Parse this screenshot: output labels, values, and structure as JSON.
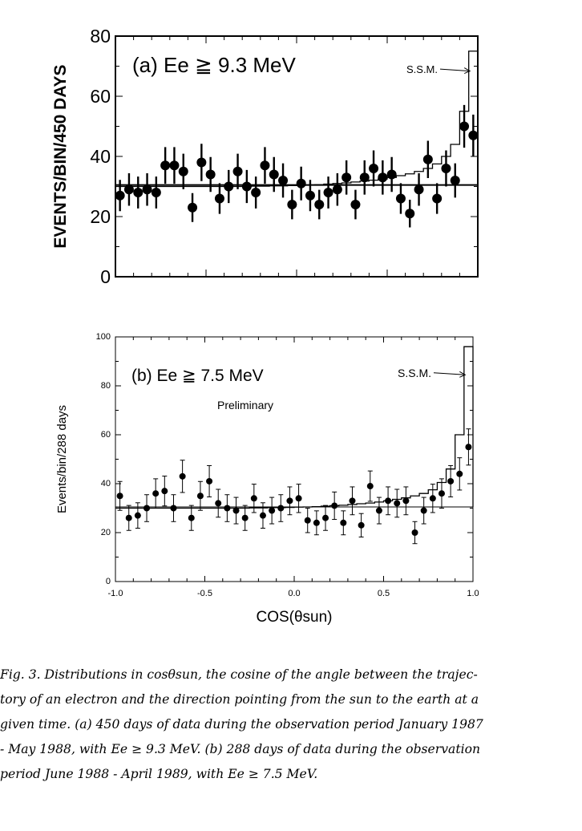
{
  "chart_data": [
    {
      "type": "scatter",
      "panel": "a",
      "title": "(a) Ee ≧ 9.3 MeV",
      "xlabel": "",
      "ylabel": "EVENTS/BIN/450 DAYS",
      "xlim": [
        -1.0,
        1.0
      ],
      "ylim": [
        0,
        80
      ],
      "yticks": [
        "0",
        "20",
        "40",
        "60",
        "80"
      ],
      "grid": false,
      "annotation": "S.S.M.",
      "flat_level": 30.5,
      "series": [
        {
          "name": "data",
          "x": [
            -0.975,
            -0.925,
            -0.875,
            -0.825,
            -0.775,
            -0.725,
            -0.675,
            -0.625,
            -0.575,
            -0.525,
            -0.475,
            -0.425,
            -0.375,
            -0.325,
            -0.275,
            -0.225,
            -0.175,
            -0.125,
            -0.075,
            -0.025,
            0.025,
            0.075,
            0.125,
            0.175,
            0.225,
            0.275,
            0.325,
            0.375,
            0.425,
            0.475,
            0.525,
            0.575,
            0.625,
            0.675,
            0.725,
            0.775,
            0.825,
            0.875,
            0.925,
            0.975
          ],
          "y": [
            27,
            29,
            28,
            29,
            28,
            37,
            37,
            35,
            23,
            38,
            34,
            26,
            30,
            35,
            30,
            28,
            37,
            34,
            32,
            24,
            31,
            27,
            24,
            28,
            29,
            33,
            24,
            33,
            36,
            33,
            34,
            26,
            21,
            29,
            39,
            26,
            36,
            32,
            50,
            47
          ],
          "err": [
            5.2,
            5.4,
            5.3,
            5.4,
            5.3,
            6.1,
            6.1,
            5.9,
            4.8,
            6.2,
            5.8,
            5.1,
            5.5,
            5.9,
            5.5,
            5.3,
            6.1,
            5.8,
            5.7,
            4.9,
            5.6,
            5.2,
            4.9,
            5.3,
            5.4,
            5.7,
            4.9,
            5.7,
            6.0,
            5.7,
            5.8,
            5.1,
            4.6,
            5.4,
            6.2,
            5.1,
            6.0,
            5.7,
            7.1,
            6.9
          ]
        },
        {
          "name": "S.S.M.",
          "bin_edges": [
            -1.0,
            -0.95,
            -0.9,
            -0.85,
            -0.8,
            -0.75,
            -0.7,
            -0.65,
            -0.6,
            -0.55,
            -0.5,
            -0.45,
            -0.4,
            -0.35,
            -0.3,
            -0.25,
            -0.2,
            -0.15,
            -0.1,
            -0.05,
            0.0,
            0.05,
            0.1,
            0.15,
            0.2,
            0.25,
            0.3,
            0.35,
            0.4,
            0.45,
            0.5,
            0.55,
            0.6,
            0.65,
            0.7,
            0.75,
            0.8,
            0.85,
            0.9,
            0.95,
            1.0
          ],
          "values": [
            30.0,
            30.0,
            30.0,
            30.0,
            30.0,
            30.0,
            30.0,
            30.0,
            30.0,
            30.0,
            30.0,
            30.0,
            30.0,
            30.0,
            30.0,
            30.1,
            30.1,
            30.2,
            30.2,
            30.3,
            30.4,
            30.5,
            30.6,
            30.8,
            31.0,
            31.2,
            31.5,
            31.8,
            32.1,
            32.5,
            33.0,
            33.6,
            34.2,
            35.0,
            36.0,
            37.5,
            40.0,
            44.0,
            55.0,
            75.0
          ]
        }
      ]
    },
    {
      "type": "scatter",
      "panel": "b",
      "title": "(b) Ee ≧ 7.5 MeV",
      "subtitle": "Preliminary",
      "xlabel": "COS(θsun)",
      "ylabel": "Events/bin/288 days",
      "xlim": [
        -1.0,
        1.0
      ],
      "ylim": [
        0,
        100
      ],
      "xticks": [
        "-1.0",
        "-0.5",
        "0.0",
        "0.5",
        "1.0"
      ],
      "yticks": [
        "0",
        "20",
        "40",
        "60",
        "80",
        "100"
      ],
      "grid": false,
      "annotation": "S.S.M.",
      "flat_level": 30.5,
      "series": [
        {
          "name": "data",
          "x": [
            -0.975,
            -0.925,
            -0.875,
            -0.825,
            -0.775,
            -0.725,
            -0.675,
            -0.625,
            -0.575,
            -0.525,
            -0.475,
            -0.425,
            -0.375,
            -0.325,
            -0.275,
            -0.225,
            -0.175,
            -0.125,
            -0.075,
            -0.025,
            0.025,
            0.075,
            0.125,
            0.175,
            0.225,
            0.275,
            0.325,
            0.375,
            0.425,
            0.475,
            0.525,
            0.575,
            0.625,
            0.675,
            0.725,
            0.775,
            0.825,
            0.875,
            0.925,
            0.975
          ],
          "y": [
            35,
            26,
            27,
            30,
            36,
            37,
            30,
            43,
            26,
            35,
            41,
            32,
            30,
            29,
            26,
            34,
            27,
            29,
            30,
            33,
            34,
            25,
            24,
            26,
            31,
            24,
            33,
            23,
            39,
            29,
            33,
            32,
            33,
            20,
            29,
            34,
            36,
            41,
            44,
            55
          ],
          "err": [
            5.9,
            5.1,
            5.2,
            5.5,
            6.0,
            6.1,
            5.5,
            6.6,
            5.1,
            5.9,
            6.4,
            5.7,
            5.5,
            5.4,
            5.1,
            5.8,
            5.2,
            5.4,
            5.5,
            5.7,
            5.8,
            5.0,
            4.9,
            5.1,
            5.6,
            4.9,
            5.7,
            4.8,
            6.2,
            5.4,
            5.7,
            5.7,
            5.7,
            4.5,
            5.4,
            5.8,
            6.0,
            6.4,
            6.6,
            7.4
          ]
        },
        {
          "name": "S.S.M.",
          "bin_edges": [
            -1.0,
            -0.95,
            -0.9,
            -0.85,
            -0.8,
            -0.75,
            -0.7,
            -0.65,
            -0.6,
            -0.55,
            -0.5,
            -0.45,
            -0.4,
            -0.35,
            -0.3,
            -0.25,
            -0.2,
            -0.15,
            -0.1,
            -0.05,
            0.0,
            0.05,
            0.1,
            0.15,
            0.2,
            0.25,
            0.3,
            0.35,
            0.4,
            0.45,
            0.5,
            0.55,
            0.6,
            0.65,
            0.7,
            0.75,
            0.8,
            0.85,
            0.9,
            0.95,
            1.0
          ],
          "values": [
            30.0,
            30.0,
            30.0,
            30.0,
            30.0,
            30.0,
            30.0,
            30.0,
            30.0,
            30.0,
            30.0,
            30.0,
            30.0,
            30.0,
            30.0,
            30.1,
            30.1,
            30.2,
            30.2,
            30.3,
            30.4,
            30.5,
            30.6,
            30.8,
            31.0,
            31.2,
            31.5,
            31.8,
            32.1,
            32.5,
            33.0,
            33.6,
            34.2,
            35.0,
            36.0,
            37.5,
            40.5,
            46.0,
            60.0,
            96.0
          ]
        }
      ]
    }
  ],
  "caption": {
    "lines": [
      "Fig. 3. Distributions in cosθsun, the cosine of the angle between the trajec-",
      "tory of an electron and the direction pointing from the sun to the earth at a",
      "given time. (a) 450 days of data during the observation period January 1987",
      "- May 1988, with Ee ≥ 9.3 MeV. (b) 288 days of data during the observation",
      "period June 1988 - April 1989, with Ee ≥ 7.5 MeV."
    ]
  }
}
